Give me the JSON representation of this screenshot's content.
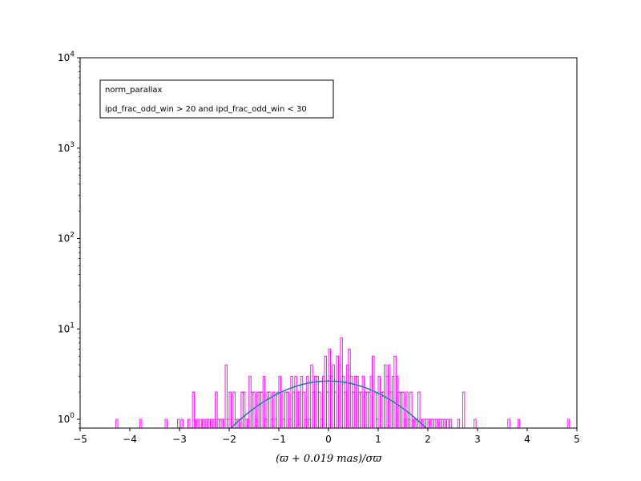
{
  "chart_data": {
    "type": "histogram",
    "xlabel": "(ϖ + 0.019 mas)/σϖ",
    "ylabel": "",
    "title": "",
    "xlim": [
      -5,
      5
    ],
    "ylim": [
      0.8,
      10000
    ],
    "yscale": "log",
    "grid": false,
    "x_ticks": [
      "−5",
      "−4",
      "−3",
      "−2",
      "−1",
      "0",
      "1",
      "2",
      "3",
      "4",
      "5"
    ],
    "y_ticks": [
      {
        "value": 1,
        "base": "10",
        "exp": "0"
      },
      {
        "value": 10,
        "base": "10",
        "exp": "1"
      },
      {
        "value": 100,
        "base": "10",
        "exp": "2"
      },
      {
        "value": 1000,
        "base": "10",
        "exp": "3"
      },
      {
        "value": 10000,
        "base": "10",
        "exp": "4"
      }
    ],
    "legend": {
      "placement": "top-left",
      "line1": "norm_parallax",
      "line2": "ipd_frac_odd_win > 20 and ipd_frac_odd_win < 30"
    },
    "histogram": {
      "color": "#ff00ff",
      "bins": [
        [
          -4.26,
          1
        ],
        [
          -3.78,
          1
        ],
        [
          -3.27,
          1
        ],
        [
          -3.02,
          1
        ],
        [
          -2.95,
          1
        ],
        [
          -2.81,
          1
        ],
        [
          -2.72,
          2
        ],
        [
          -2.65,
          1
        ],
        [
          -2.58,
          1
        ],
        [
          -2.52,
          1
        ],
        [
          -2.46,
          1
        ],
        [
          -2.4,
          1
        ],
        [
          -2.36,
          1
        ],
        [
          -2.3,
          1
        ],
        [
          -2.26,
          2
        ],
        [
          -2.22,
          1
        ],
        [
          -2.18,
          1
        ],
        [
          -2.14,
          1
        ],
        [
          -2.1,
          1
        ],
        [
          -2.06,
          4
        ],
        [
          -2.02,
          1
        ],
        [
          -1.98,
          2
        ],
        [
          -1.94,
          1
        ],
        [
          -1.9,
          2
        ],
        [
          -1.86,
          1
        ],
        [
          -1.82,
          1
        ],
        [
          -1.78,
          1
        ],
        [
          -1.74,
          2
        ],
        [
          -1.7,
          2
        ],
        [
          -1.66,
          1
        ],
        [
          -1.62,
          1
        ],
        [
          -1.58,
          3
        ],
        [
          -1.54,
          2
        ],
        [
          -1.5,
          2
        ],
        [
          -1.46,
          1
        ],
        [
          -1.42,
          2
        ],
        [
          -1.38,
          2
        ],
        [
          -1.34,
          2
        ],
        [
          -1.3,
          3
        ],
        [
          -1.26,
          1
        ],
        [
          -1.22,
          2
        ],
        [
          -1.18,
          2
        ],
        [
          -1.14,
          1
        ],
        [
          -1.1,
          2
        ],
        [
          -1.06,
          1
        ],
        [
          -1.02,
          2
        ],
        [
          -0.98,
          3
        ],
        [
          -0.94,
          2
        ],
        [
          -0.9,
          1
        ],
        [
          -0.86,
          2
        ],
        [
          -0.82,
          2
        ],
        [
          -0.78,
          1
        ],
        [
          -0.74,
          3
        ],
        [
          -0.7,
          2
        ],
        [
          -0.66,
          3
        ],
        [
          -0.62,
          2
        ],
        [
          -0.58,
          2
        ],
        [
          -0.54,
          3
        ],
        [
          -0.5,
          2
        ],
        [
          -0.46,
          1
        ],
        [
          -0.42,
          3
        ],
        [
          -0.38,
          1
        ],
        [
          -0.34,
          4
        ],
        [
          -0.3,
          2
        ],
        [
          -0.26,
          3
        ],
        [
          -0.22,
          3
        ],
        [
          -0.18,
          2
        ],
        [
          -0.14,
          1
        ],
        [
          -0.1,
          3
        ],
        [
          -0.06,
          5
        ],
        [
          -0.02,
          2
        ],
        [
          0.02,
          6
        ],
        [
          0.06,
          3
        ],
        [
          0.1,
          4
        ],
        [
          0.14,
          2
        ],
        [
          0.18,
          5
        ],
        [
          0.22,
          4
        ],
        [
          0.26,
          8
        ],
        [
          0.3,
          3
        ],
        [
          0.34,
          2
        ],
        [
          0.38,
          4
        ],
        [
          0.42,
          6
        ],
        [
          0.46,
          3
        ],
        [
          0.5,
          2
        ],
        [
          0.54,
          3
        ],
        [
          0.58,
          3
        ],
        [
          0.62,
          2
        ],
        [
          0.66,
          2
        ],
        [
          0.7,
          3
        ],
        [
          0.74,
          2
        ],
        [
          0.78,
          2
        ],
        [
          0.82,
          2
        ],
        [
          0.86,
          3
        ],
        [
          0.9,
          5
        ],
        [
          0.94,
          2
        ],
        [
          0.98,
          1
        ],
        [
          1.02,
          3
        ],
        [
          1.06,
          2
        ],
        [
          1.1,
          2
        ],
        [
          1.14,
          4
        ],
        [
          1.18,
          3
        ],
        [
          1.22,
          4
        ],
        [
          1.26,
          2
        ],
        [
          1.3,
          3
        ],
        [
          1.34,
          5
        ],
        [
          1.38,
          3
        ],
        [
          1.42,
          2
        ],
        [
          1.46,
          2
        ],
        [
          1.5,
          2
        ],
        [
          1.54,
          1
        ],
        [
          1.58,
          2
        ],
        [
          1.62,
          1
        ],
        [
          1.66,
          2
        ],
        [
          1.7,
          1
        ],
        [
          1.74,
          1
        ],
        [
          1.78,
          1
        ],
        [
          1.82,
          2
        ],
        [
          1.86,
          1
        ],
        [
          1.9,
          1
        ],
        [
          1.94,
          1
        ],
        [
          1.98,
          1
        ],
        [
          2.02,
          1
        ],
        [
          2.06,
          1
        ],
        [
          2.1,
          1
        ],
        [
          2.14,
          1
        ],
        [
          2.18,
          1
        ],
        [
          2.22,
          1
        ],
        [
          2.26,
          1
        ],
        [
          2.3,
          1
        ],
        [
          2.34,
          1
        ],
        [
          2.4,
          1
        ],
        [
          2.46,
          1
        ],
        [
          2.62,
          1
        ],
        [
          2.72,
          2
        ],
        [
          2.95,
          1
        ],
        [
          3.63,
          1
        ],
        [
          3.83,
          1
        ],
        [
          4.83,
          1
        ]
      ]
    },
    "fit_curve": {
      "color": "#1f77b4",
      "amplitude": 2.65,
      "mean": 0.0,
      "sigma": 1.27
    }
  }
}
